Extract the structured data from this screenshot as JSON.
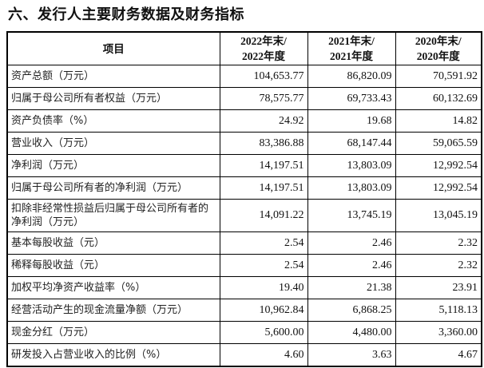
{
  "title": "六、发行人主要财务数据及财务指标",
  "table": {
    "headers": [
      "项目",
      "2022年末/\n2022年度",
      "2021年末/\n2021年度",
      "2020年末/\n2020年度"
    ],
    "rows": [
      {
        "label": "资产总额（万元）",
        "values": [
          "104,653.77",
          "86,820.09",
          "70,591.92"
        ]
      },
      {
        "label": "归属于母公司所有者权益（万元）",
        "values": [
          "78,575.77",
          "69,733.43",
          "60,132.69"
        ]
      },
      {
        "label": "资产负债率（%）",
        "values": [
          "24.92",
          "19.68",
          "14.82"
        ]
      },
      {
        "label": "营业收入（万元）",
        "values": [
          "83,386.88",
          "68,147.44",
          "59,065.59"
        ]
      },
      {
        "label": "净利润（万元）",
        "values": [
          "14,197.51",
          "13,803.09",
          "12,992.54"
        ]
      },
      {
        "label": "归属于母公司所有者的净利润（万元）",
        "values": [
          "14,197.51",
          "13,803.09",
          "12,992.54"
        ]
      },
      {
        "label": "扣除非经常性损益后归属于母公司所有者的净利润（万元）",
        "values": [
          "14,091.22",
          "13,745.19",
          "13,045.19"
        ]
      },
      {
        "label": "基本每股收益（元）",
        "values": [
          "2.54",
          "2.46",
          "2.32"
        ]
      },
      {
        "label": "稀释每股收益（元）",
        "values": [
          "2.54",
          "2.46",
          "2.32"
        ]
      },
      {
        "label": "加权平均净资产收益率（%）",
        "values": [
          "19.40",
          "21.38",
          "23.91"
        ]
      },
      {
        "label": "经营活动产生的现金流量净额（万元）",
        "values": [
          "10,962.84",
          "6,868.25",
          "5,118.13"
        ]
      },
      {
        "label": "现金分红（万元）",
        "values": [
          "5,600.00",
          "4,480.00",
          "3,360.00"
        ]
      },
      {
        "label": "研发投入占营业收入的比例（%）",
        "values": [
          "4.60",
          "3.63",
          "4.67"
        ]
      }
    ]
  }
}
